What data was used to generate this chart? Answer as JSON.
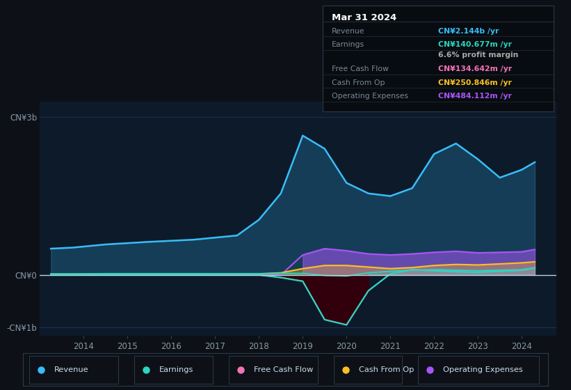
{
  "background_color": "#0d1117",
  "chart_bg": "#0d1a2a",
  "x_years": [
    2013.25,
    2013.75,
    2014.5,
    2015.5,
    2016.5,
    2017.5,
    2018.0,
    2018.5,
    2019.0,
    2019.5,
    2020.0,
    2020.5,
    2021.0,
    2021.5,
    2022.0,
    2022.5,
    2023.0,
    2023.5,
    2024.0,
    2024.3
  ],
  "revenue": [
    0.5,
    0.52,
    0.58,
    0.63,
    0.67,
    0.75,
    1.05,
    1.55,
    2.65,
    2.4,
    1.75,
    1.55,
    1.5,
    1.65,
    2.3,
    2.5,
    2.2,
    1.85,
    2.0,
    2.144
  ],
  "earnings": [
    0.02,
    0.02,
    0.025,
    0.025,
    0.025,
    0.025,
    0.025,
    0.03,
    0.03,
    -0.01,
    -0.02,
    0.04,
    0.07,
    0.09,
    0.1,
    0.09,
    0.08,
    0.09,
    0.1,
    0.14
  ],
  "free_cash_flow": [
    0.01,
    0.01,
    0.01,
    0.01,
    0.01,
    0.005,
    0.0,
    -0.05,
    -0.12,
    -0.85,
    -0.95,
    -0.3,
    0.02,
    0.1,
    0.08,
    0.06,
    0.05,
    0.07,
    0.09,
    0.134
  ],
  "cash_from_op": [
    0.015,
    0.015,
    0.015,
    0.015,
    0.015,
    0.02,
    0.02,
    0.04,
    0.12,
    0.18,
    0.18,
    0.15,
    0.12,
    0.14,
    0.18,
    0.2,
    0.19,
    0.21,
    0.23,
    0.25
  ],
  "operating_expenses": [
    0.0,
    0.0,
    0.0,
    0.0,
    0.0,
    0.0,
    0.0,
    0.0,
    0.38,
    0.5,
    0.46,
    0.4,
    0.38,
    0.4,
    0.43,
    0.45,
    0.42,
    0.43,
    0.44,
    0.484
  ],
  "revenue_color": "#38bdf8",
  "earnings_color": "#2dd4bf",
  "fcf_color": "#2dd4bf",
  "fcf_fill_neg": "#2a0a0a",
  "cfop_color": "#fbbf24",
  "opex_color": "#a855f7",
  "fcf_line_color": "#2dd4bf",
  "pink_color": "#f472b6",
  "ylim": [
    -1.15,
    3.3
  ],
  "xlim": [
    2013.0,
    2024.8
  ],
  "ytick_positions": [
    -1.0,
    0.0,
    3.0
  ],
  "ytick_labels": [
    "-CN¥1b",
    "CN¥0",
    "CN¥3b"
  ],
  "xticks": [
    2014,
    2015,
    2016,
    2017,
    2018,
    2019,
    2020,
    2021,
    2022,
    2023,
    2024
  ],
  "grid_color": "#1e3558",
  "zero_line_color": "#c0d0e0",
  "tooltip_rows": [
    {
      "label": "Revenue",
      "value": "CN¥2.144b /yr",
      "color": "#38bdf8"
    },
    {
      "label": "Earnings",
      "value": "CN¥140.677m /yr",
      "color": "#2dd4bf"
    },
    {
      "label": "",
      "value": "6.6% profit margin",
      "color": "#aaaaaa"
    },
    {
      "label": "Free Cash Flow",
      "value": "CN¥134.642m /yr",
      "color": "#f472b6"
    },
    {
      "label": "Cash From Op",
      "value": "CN¥250.846m /yr",
      "color": "#fbbf24"
    },
    {
      "label": "Operating Expenses",
      "value": "CN¥484.112m /yr",
      "color": "#a855f7"
    }
  ],
  "legend_items": [
    {
      "label": "Revenue",
      "color": "#38bdf8"
    },
    {
      "label": "Earnings",
      "color": "#2dd4bf"
    },
    {
      "label": "Free Cash Flow",
      "color": "#f472b6"
    },
    {
      "label": "Cash From Op",
      "color": "#fbbf24"
    },
    {
      "label": "Operating Expenses",
      "color": "#a855f7"
    }
  ]
}
